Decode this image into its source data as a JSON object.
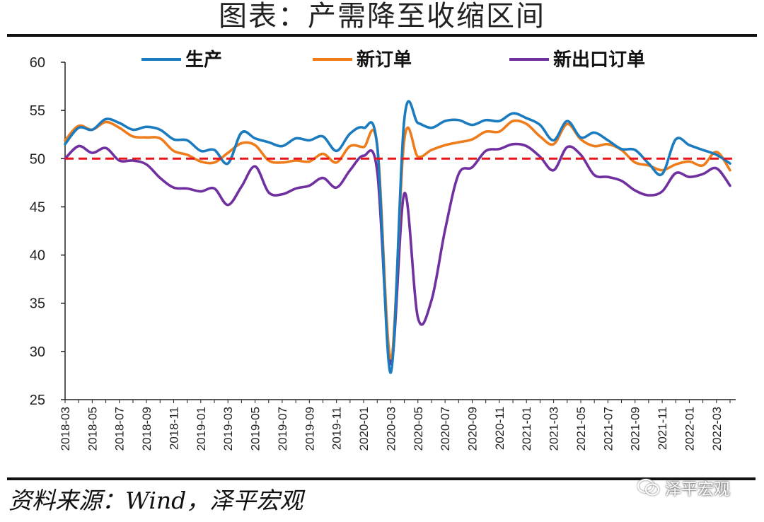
{
  "title": "图表：产需降至收缩区间",
  "source": "资料来源：Wind，泽平宏观",
  "watermark": "泽平宏观",
  "watermark_icon": "wechat-logo-icon",
  "chart_data": {
    "type": "line",
    "title": "图表：产需降至收缩区间",
    "xlabel": "",
    "ylabel": "",
    "ylim": [
      25,
      60
    ],
    "yticks": [
      25,
      30,
      35,
      40,
      45,
      50,
      55,
      60
    ],
    "x_start": "2018-03",
    "x_end": "2022-03",
    "x_tick_labels": [
      "2018-03",
      "2018-05",
      "2018-07",
      "2018-09",
      "2018-11",
      "2019-01",
      "2019-03",
      "2019-05",
      "2019-07",
      "2019-09",
      "2019-11",
      "2020-01",
      "2020-03",
      "2020-05",
      "2020-07",
      "2020-09",
      "2020-11",
      "2021-01",
      "2021-03",
      "2021-05",
      "2021-07",
      "2021-09",
      "2021-11",
      "2022-01",
      "2022-03"
    ],
    "grid": false,
    "legend_position": "top",
    "reference_line": {
      "y": 50,
      "color": "#e8141c",
      "style": "dashed"
    },
    "series": [
      {
        "name": "生产",
        "color": "#1a7bbf",
        "values": [
          51.5,
          53.2,
          53.0,
          54.1,
          53.7,
          53.0,
          53.3,
          53.0,
          52.0,
          51.9,
          50.8,
          50.9,
          49.5,
          52.7,
          52.1,
          51.7,
          51.3,
          52.1,
          51.9,
          52.3,
          50.8,
          52.6,
          53.2,
          51.3,
          27.8,
          54.1,
          53.7,
          53.2,
          53.9,
          54.0,
          53.5,
          54.0,
          53.9,
          54.7,
          54.2,
          53.5,
          51.9,
          53.9,
          52.2,
          52.7,
          51.9,
          51.0,
          50.9,
          49.5,
          48.4,
          52.0,
          51.4,
          50.9,
          50.4,
          49.5
        ]
      },
      {
        "name": "新订单",
        "color": "#ee7c1b",
        "values": [
          51.9,
          53.4,
          53.0,
          53.8,
          53.2,
          52.3,
          52.2,
          52.1,
          50.8,
          50.4,
          49.7,
          49.6,
          50.6,
          51.6,
          51.4,
          49.8,
          49.6,
          49.8,
          49.7,
          50.5,
          49.6,
          51.3,
          51.2,
          51.4,
          29.3,
          52.0,
          50.2,
          50.9,
          51.4,
          51.7,
          52.0,
          52.8,
          52.8,
          53.9,
          53.6,
          52.3,
          51.5,
          53.6,
          52.0,
          51.3,
          51.5,
          50.9,
          49.6,
          49.3,
          48.8,
          49.4,
          49.7,
          49.3,
          50.7,
          48.8
        ]
      },
      {
        "name": "新出口订单",
        "color": "#7030a0",
        "values": [
          50.0,
          51.3,
          50.6,
          51.1,
          49.8,
          49.8,
          49.4,
          48.0,
          47.0,
          46.9,
          46.6,
          46.9,
          45.2,
          47.1,
          49.2,
          46.5,
          46.3,
          46.9,
          47.2,
          48.0,
          47.0,
          48.8,
          50.3,
          48.7,
          28.7,
          46.4,
          33.5,
          35.3,
          42.6,
          48.4,
          49.1,
          50.8,
          51.0,
          51.5,
          51.3,
          50.2,
          48.8,
          51.2,
          50.4,
          48.3,
          48.1,
          47.7,
          46.7,
          46.2,
          46.6,
          48.5,
          48.1,
          48.4,
          49.0,
          47.2
        ]
      }
    ]
  }
}
